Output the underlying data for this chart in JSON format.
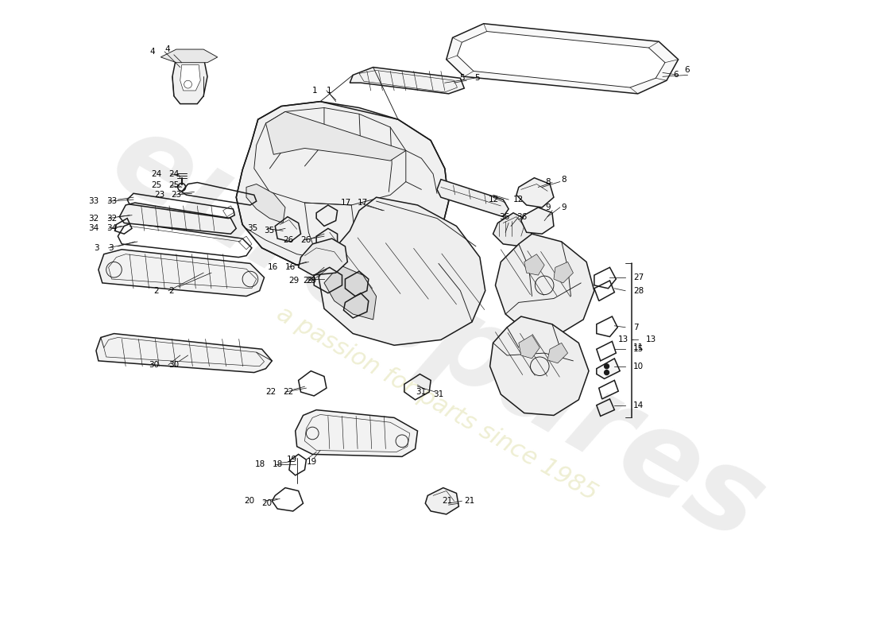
{
  "background_color": "#ffffff",
  "line_color": "#1a1a1a",
  "lw_main": 1.1,
  "lw_thin": 0.65,
  "lw_detail": 0.45,
  "watermark1": "eurospares",
  "watermark2": "a passion for parts since 1985",
  "fig_w": 11.0,
  "fig_h": 8.0,
  "dpi": 100,
  "xlim": [
    0,
    11
  ],
  "ylim": [
    0,
    8
  ]
}
